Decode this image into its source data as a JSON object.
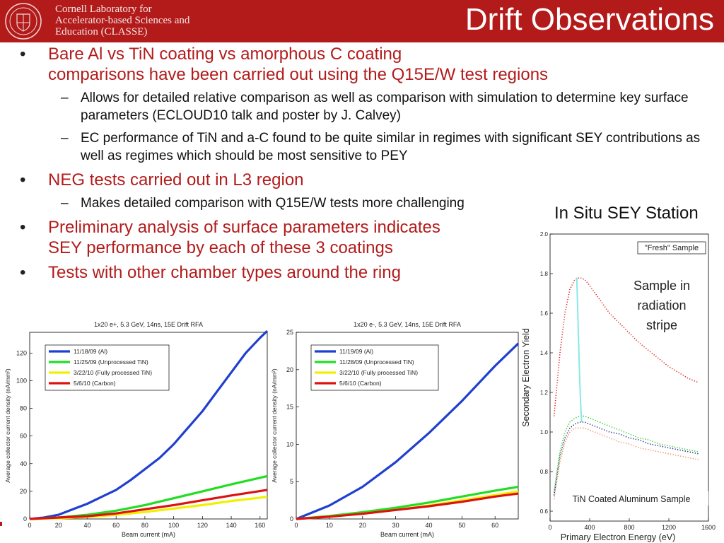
{
  "header": {
    "org_name": "Cornell Laboratory for\nAccelerator-based Sciences and\nEducation (CLASSE)",
    "slide_title": "Drift Observations"
  },
  "bullets": [
    {
      "text": "Bare Al vs TiN coating vs amorphous C coating\ncomparisons have been carried out using the Q15E/W test regions",
      "sub": [
        "Allows for detailed relative comparison as well as comparison with simulation to determine key surface parameters (ECLOUD10 talk and poster by J. Calvey)",
        "EC performance of TiN and a-C found to be quite similar in regimes with significant SEY contributions as well as regimes which should be most sensitive to PEY"
      ]
    },
    {
      "text": "NEG tests carried out in L3 region",
      "sub": [
        "Makes detailed comparison with Q15E/W tests more challenging"
      ]
    },
    {
      "text": "Preliminary analysis of surface parameters indicates\nSEY performance by each of these 3 coatings",
      "sub": []
    },
    {
      "text": "Tests with other chamber types around the ring",
      "sub": []
    }
  ],
  "sey_station_label": "In Situ SEY Station",
  "chart_data": [
    {
      "type": "line",
      "title": "1x20 e+, 5.3 GeV, 14ns, 15E Drift RFA",
      "xlabel": "Beam current (mA)",
      "ylabel": "Average collector current density (nA/mm²)",
      "xlim": [
        0,
        165
      ],
      "ylim": [
        0,
        135
      ],
      "xticks": [
        0,
        20,
        40,
        60,
        80,
        100,
        120,
        140,
        160
      ],
      "yticks": [
        0,
        20,
        40,
        60,
        80,
        100,
        120
      ],
      "legend_position": "top-left",
      "series": [
        {
          "name": "11/18/09 (Al)",
          "color": "#1f3fd0",
          "x": [
            0,
            10,
            20,
            30,
            40,
            50,
            60,
            70,
            80,
            90,
            100,
            110,
            120,
            130,
            140,
            150,
            160,
            165
          ],
          "y": [
            0,
            1,
            3,
            7,
            11,
            16,
            21,
            28,
            36,
            44,
            54,
            66,
            78,
            92,
            106,
            120,
            131,
            136
          ]
        },
        {
          "name": "11/25/09 (Unprocessed TiN)",
          "color": "#22dd22",
          "x": [
            0,
            20,
            40,
            60,
            80,
            100,
            120,
            140,
            165
          ],
          "y": [
            0,
            1,
            3,
            6,
            10,
            15,
            20,
            25,
            31
          ]
        },
        {
          "name": "3/22/10 (Fully processed TiN)",
          "color": "#f0f000",
          "x": [
            0,
            20,
            40,
            60,
            80,
            100,
            120,
            140,
            165
          ],
          "y": [
            0,
            0.5,
            1.5,
            3,
            5,
            7.5,
            10,
            13,
            16
          ]
        },
        {
          "name": "5/6/10 (Carbon)",
          "color": "#dd1111",
          "x": [
            0,
            20,
            40,
            60,
            80,
            100,
            120,
            140,
            165
          ],
          "y": [
            0,
            1,
            2,
            4,
            7,
            10,
            13.5,
            17,
            21
          ]
        }
      ]
    },
    {
      "type": "line",
      "title": "1x20 e-, 5.3 GeV, 14ns, 15E Drift RFA",
      "xlabel": "Beam current (mA)",
      "ylabel": "Average collector current density (nA/mm²)",
      "xlim": [
        0,
        67
      ],
      "ylim": [
        0,
        25
      ],
      "xticks": [
        0,
        10,
        20,
        30,
        40,
        50,
        60
      ],
      "yticks": [
        0,
        5,
        10,
        15,
        20,
        25
      ],
      "legend_position": "top-left",
      "series": [
        {
          "name": "11/19/09 (Al)",
          "color": "#1f3fd0",
          "x": [
            0,
            10,
            20,
            30,
            40,
            50,
            60,
            67
          ],
          "y": [
            0,
            1.8,
            4.3,
            7.6,
            11.5,
            15.8,
            20.5,
            23.5
          ]
        },
        {
          "name": "11/28/09 (Unprocessed TiN)",
          "color": "#22dd22",
          "x": [
            0,
            10,
            20,
            30,
            40,
            50,
            60,
            67
          ],
          "y": [
            0,
            0.4,
            0.9,
            1.5,
            2.2,
            3.0,
            3.8,
            4.3
          ]
        },
        {
          "name": "3/22/10 (Fully processed TiN)",
          "color": "#f0f000",
          "x": [
            0,
            10,
            20,
            30,
            40,
            50,
            60,
            67
          ],
          "y": [
            0,
            0.3,
            0.7,
            1.2,
            1.8,
            2.5,
            3.2,
            3.7
          ]
        },
        {
          "name": "5/6/10 (Carbon)",
          "color": "#dd1111",
          "x": [
            0,
            10,
            20,
            30,
            40,
            50,
            60,
            67
          ],
          "y": [
            0,
            0.3,
            0.7,
            1.2,
            1.7,
            2.3,
            3.0,
            3.4
          ]
        }
      ]
    },
    {
      "type": "scatter",
      "title": "",
      "xlabel": "Primary Electron Energy (eV)",
      "ylabel": "Secondary Electron Yield",
      "xlim": [
        0,
        1600
      ],
      "ylim": [
        0.55,
        2.0
      ],
      "xticks": [
        0,
        400,
        800,
        1200,
        1600
      ],
      "yticks": [
        0.6,
        0.8,
        1.0,
        1.2,
        1.4,
        1.6,
        1.8,
        2.0
      ],
      "legend_entries": [
        "\"Fresh\" Sample"
      ],
      "annotations": [
        "Sample in\nradiation\nstripe",
        "TiN Coated Aluminum Sample"
      ],
      "series": [
        {
          "color": "#e02020",
          "x": [
            40,
            100,
            150,
            200,
            250,
            300,
            350,
            400,
            500,
            600,
            700,
            800,
            900,
            1000,
            1100,
            1200,
            1300,
            1400,
            1500
          ],
          "y": [
            1.08,
            1.4,
            1.6,
            1.72,
            1.77,
            1.78,
            1.77,
            1.74,
            1.67,
            1.6,
            1.55,
            1.5,
            1.45,
            1.41,
            1.37,
            1.33,
            1.3,
            1.27,
            1.25
          ]
        },
        {
          "color": "#22cc22",
          "x": [
            40,
            100,
            150,
            200,
            250,
            300,
            350,
            400,
            500,
            600,
            700,
            800,
            900,
            1000,
            1100,
            1200,
            1300,
            1400,
            1500
          ],
          "y": [
            0.7,
            0.9,
            1.0,
            1.05,
            1.07,
            1.08,
            1.08,
            1.07,
            1.05,
            1.03,
            1.01,
            0.99,
            0.97,
            0.96,
            0.94,
            0.93,
            0.92,
            0.91,
            0.9
          ]
        },
        {
          "color": "#1a1a80",
          "x": [
            40,
            100,
            150,
            200,
            250,
            300,
            350,
            400,
            500,
            600,
            700,
            800,
            900,
            1000,
            1100,
            1200,
            1300,
            1400,
            1500
          ],
          "y": [
            0.68,
            0.88,
            0.97,
            1.02,
            1.04,
            1.05,
            1.05,
            1.04,
            1.02,
            1.0,
            0.99,
            0.97,
            0.96,
            0.94,
            0.93,
            0.92,
            0.91,
            0.9,
            0.89
          ]
        },
        {
          "color": "#f09060",
          "x": [
            40,
            100,
            150,
            200,
            250,
            300,
            350,
            400,
            500,
            600,
            700,
            800,
            900,
            1000,
            1100,
            1200,
            1300,
            1400,
            1500
          ],
          "y": [
            0.66,
            0.85,
            0.95,
            1.0,
            1.02,
            1.02,
            1.02,
            1.01,
            0.99,
            0.97,
            0.95,
            0.94,
            0.92,
            0.91,
            0.9,
            0.89,
            0.88,
            0.87,
            0.86
          ]
        },
        {
          "color": "#88e8e8",
          "x": [
            270,
            280,
            290,
            300,
            310,
            320
          ],
          "y": [
            1.78,
            1.6,
            1.42,
            1.26,
            1.13,
            1.05
          ]
        }
      ]
    }
  ]
}
